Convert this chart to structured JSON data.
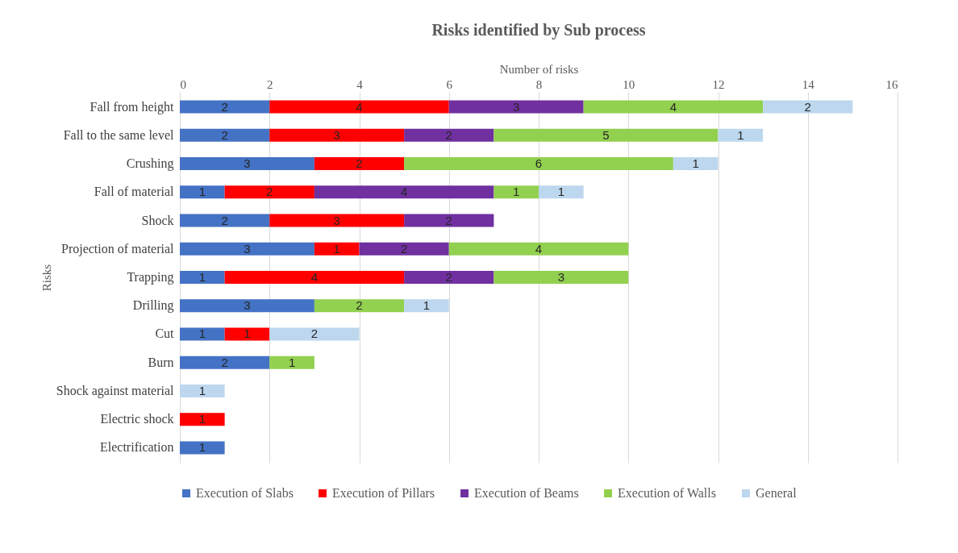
{
  "chart_data": {
    "type": "bar",
    "orientation": "horizontal",
    "stacked": true,
    "title": "Risks identified by Sub process",
    "xlabel": "Number of risks",
    "ylabel": "Risks",
    "categories": [
      "Fall from height",
      "Fall to the same level",
      "Crushing",
      "Fall of material",
      "Shock",
      "Projection of material",
      "Trapping",
      "Drilling",
      "Cut",
      "Burn",
      "Shock against material",
      "Electric shock",
      "Electrification"
    ],
    "series": [
      {
        "name": "Execution of Slabs",
        "color": "#4472c4",
        "values": [
          2,
          2,
          3,
          1,
          2,
          3,
          1,
          3,
          1,
          2,
          null,
          null,
          1
        ]
      },
      {
        "name": "Execution of Pillars",
        "color": "#ff0000",
        "values": [
          4,
          3,
          2,
          2,
          3,
          1,
          4,
          null,
          1,
          null,
          null,
          1,
          null
        ]
      },
      {
        "name": "Execution of Beams",
        "color": "#7030a0",
        "values": [
          3,
          2,
          null,
          4,
          2,
          2,
          2,
          null,
          null,
          null,
          null,
          null,
          null
        ]
      },
      {
        "name": "Execution of Walls",
        "color": "#92d050",
        "values": [
          4,
          5,
          6,
          1,
          null,
          4,
          3,
          2,
          null,
          1,
          null,
          null,
          null
        ]
      },
      {
        "name": "General",
        "color": "#bdd7ee",
        "values": [
          2,
          1,
          1,
          1,
          null,
          null,
          null,
          1,
          2,
          null,
          1,
          null,
          null
        ]
      }
    ],
    "xlim": [
      0,
      16
    ],
    "xticks": [
      0,
      2,
      4,
      6,
      8,
      10,
      12,
      14,
      16
    ],
    "grid": "x",
    "legend": "bottom",
    "data_labels": true
  }
}
